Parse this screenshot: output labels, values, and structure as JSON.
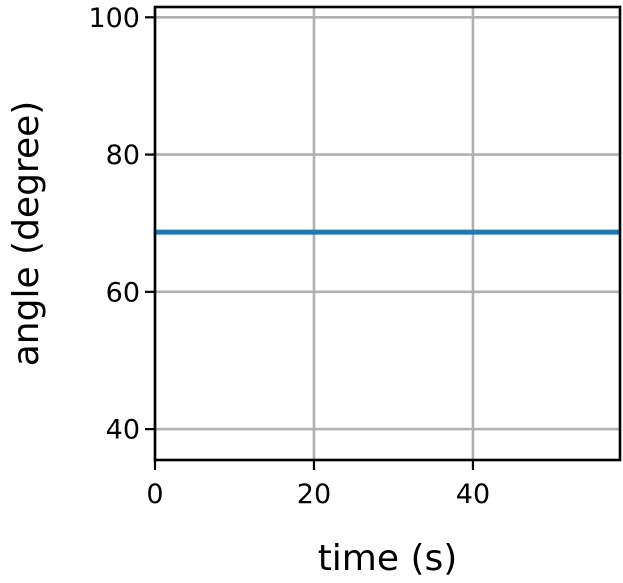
{
  "chart_data": {
    "type": "line",
    "xlabel": "time (s)",
    "ylabel": "angle (degree)",
    "xlim": [
      0,
      58.5
    ],
    "ylim": [
      35.5,
      101.5
    ],
    "x_ticks": [
      0,
      20,
      40
    ],
    "y_ticks": [
      40,
      60,
      80,
      100
    ],
    "x_tick_labels": [
      "0",
      "20",
      "40"
    ],
    "y_tick_labels": [
      "40",
      "60",
      "80",
      "100"
    ],
    "grid": true,
    "series": [
      {
        "x": [
          0,
          58.5
        ],
        "y": [
          68.7,
          68.7
        ],
        "color": "#1f77b4"
      }
    ],
    "colors": {
      "grid": "#b0b0b0",
      "axes": "#000000",
      "line": "#1f77b4"
    }
  }
}
